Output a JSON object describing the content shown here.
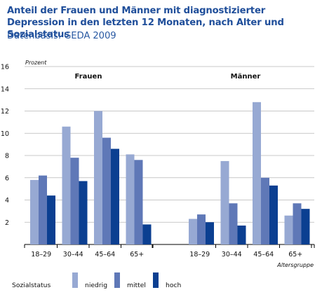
{
  "header": {
    "title": "Anteil der Frauen und Männer mit diagnostizierter Depression in den letzten 12 Monaten, nach Alter und Sozialstatus",
    "subtitle": "Datenbasis: GEDA 2009"
  },
  "chart_data": {
    "type": "bar",
    "ylabel": "Prozent",
    "xlabel": "Altersgruppe",
    "ylim": [
      0,
      16
    ],
    "yticks": [
      0,
      2,
      4,
      6,
      8,
      10,
      12,
      14,
      16
    ],
    "y_tick_labels": [
      "2",
      "4",
      "6",
      "8",
      "10",
      "12",
      "14",
      "16"
    ],
    "grid": true,
    "legend_placement": "bottom",
    "legend_title": "Sozialstatus",
    "groups": [
      {
        "name": "Frauen",
        "categories": [
          "18–29",
          "30–44",
          "45–64",
          "65+"
        ],
        "series": [
          {
            "name": "niedrig",
            "values": [
              5.8,
              10.6,
              12.0,
              8.1
            ]
          },
          {
            "name": "mittel",
            "values": [
              6.2,
              7.8,
              9.6,
              7.6
            ]
          },
          {
            "name": "hoch",
            "values": [
              4.4,
              5.7,
              8.6,
              1.8
            ]
          }
        ]
      },
      {
        "name": "Männer",
        "categories": [
          "18–29",
          "30–44",
          "45–64",
          "65+"
        ],
        "series": [
          {
            "name": "niedrig",
            "values": [
              2.3,
              7.5,
              12.8,
              2.6
            ]
          },
          {
            "name": "mittel",
            "values": [
              2.7,
              3.7,
              6.0,
              3.7
            ]
          },
          {
            "name": "hoch",
            "values": [
              2.0,
              1.7,
              5.3,
              3.2
            ]
          }
        ]
      }
    ],
    "colors": {
      "niedrig": "#97a9d3",
      "mittel": "#5f78b7",
      "hoch": "#0b3f91",
      "grid": "#b6b6b6",
      "axis": "#000000",
      "title": "#1f4e9a"
    }
  }
}
